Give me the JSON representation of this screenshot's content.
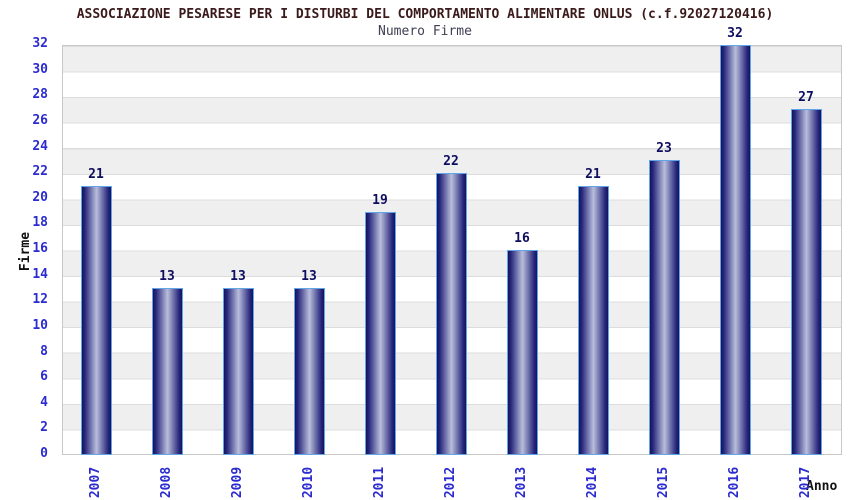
{
  "chart_data": {
    "type": "bar",
    "title": "ASSOCIAZIONE PESARESE PER I DISTURBI DEL COMPORTAMENTO ALIMENTARE ONLUS (c.f.92027120416)",
    "subtitle": "Numero Firme",
    "xlabel": "Anno",
    "ylabel": "Firme",
    "categories": [
      "2007",
      "2008",
      "2009",
      "2010",
      "2011",
      "2012",
      "2013",
      "2014",
      "2015",
      "2016",
      "2017"
    ],
    "values": [
      21,
      13,
      13,
      13,
      19,
      22,
      16,
      21,
      23,
      32,
      27
    ],
    "ylim": [
      0,
      32
    ],
    "yticks": [
      0,
      2,
      4,
      6,
      8,
      10,
      12,
      14,
      16,
      18,
      20,
      22,
      24,
      26,
      28,
      30,
      32
    ],
    "grid": "horizontal-alternating-bands",
    "legend_position": "none",
    "colors": {
      "title": "#3a1a1a",
      "subtitle": "#3f3f55",
      "tick_label": "#2b2bd0",
      "value_label": "#0e0e5e",
      "axis_title": "#111111",
      "bar_dark": "#14145a",
      "bar_mid": "#27277d",
      "bar_light": "#b9bedb",
      "bar_border": "#5fa5e7",
      "band_gray": "#efefef",
      "band_white": "#ffffff",
      "plot_border": "#c8c8c8"
    }
  }
}
